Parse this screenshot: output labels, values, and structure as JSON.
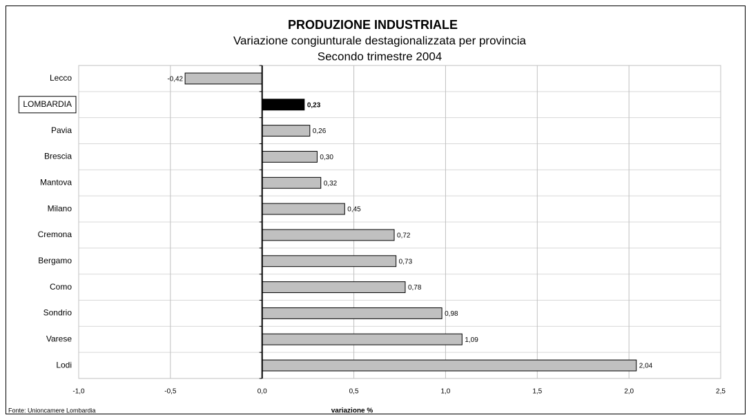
{
  "chart_data": {
    "type": "bar",
    "orientation": "horizontal",
    "title": "PRODUZIONE INDUSTRIALE",
    "subtitle": [
      "Variazione congiunturale destagionalizzata per provincia",
      "Secondo trimestre 2004"
    ],
    "categories": [
      "Lecco",
      "LOMBARDIA",
      "Pavia",
      "Brescia",
      "Mantova",
      "Milano",
      "Cremona",
      "Bergamo",
      "Como",
      "Sondrio",
      "Varese",
      "Lodi"
    ],
    "values": [
      -0.42,
      0.23,
      0.26,
      0.3,
      0.32,
      0.45,
      0.72,
      0.73,
      0.78,
      0.98,
      1.09,
      2.04
    ],
    "value_labels": [
      "-0,42",
      "0,23",
      "0,26",
      "0,30",
      "0,32",
      "0,45",
      "0,72",
      "0,73",
      "0,78",
      "0,98",
      "1,09",
      "2,04"
    ],
    "colors": [
      "#c0c0c0",
      "#000000",
      "#c0c0c0",
      "#c0c0c0",
      "#c0c0c0",
      "#c0c0c0",
      "#c0c0c0",
      "#c0c0c0",
      "#c0c0c0",
      "#c0c0c0",
      "#c0c0c0",
      "#c0c0c0"
    ],
    "xlim": [
      -1.0,
      2.5
    ],
    "xticks": [
      {
        "value": -1.0,
        "label": "-1,0"
      },
      {
        "value": -0.5,
        "label": "-0,5"
      },
      {
        "value": 0,
        "label": "0,0"
      },
      {
        "value": 0.5,
        "label": "0,5"
      },
      {
        "value": 1.0,
        "label": "1,0"
      },
      {
        "value": 1.5,
        "label": "1,5"
      },
      {
        "value": 2.0,
        "label": "2,0"
      },
      {
        "value": 2.5,
        "label": "2,5"
      }
    ],
    "xlabel": "variazione %",
    "source": "Fonte: Unioncamere Lombardia",
    "grid": true
  }
}
